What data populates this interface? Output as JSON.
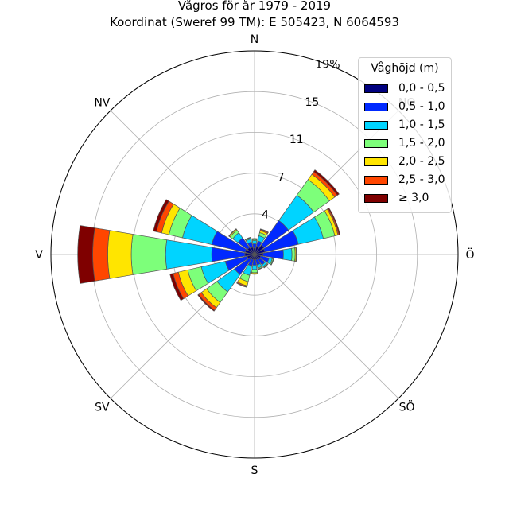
{
  "chart_data": {
    "type": "windrose",
    "title": "Vågros för år 1979 - 2019",
    "subtitle": "Koordinat (Sweref 99 TM): E 505423, N 6064593",
    "directions": [
      "N",
      "NO",
      "Ö",
      "SÖ",
      "S",
      "SV",
      "V",
      "NV"
    ],
    "sector_count": 16,
    "sector_angles_deg": [
      0,
      22.5,
      45,
      67.5,
      90,
      112.5,
      135,
      157.5,
      180,
      202.5,
      225,
      247.5,
      270,
      292.5,
      315,
      337.5
    ],
    "radial_ticks": [
      "4",
      "7",
      "11",
      "15",
      "19%"
    ],
    "radial_tick_values": [
      3.8,
      7.6,
      11.4,
      15.2,
      19.0
    ],
    "rmax": 19,
    "legend": {
      "title": "Våghöjd (m)",
      "placement": "top-right",
      "items": [
        "0,0 - 0,5",
        "0,5 - 1,0",
        "1,0 - 1,5",
        "1,5 - 2,0",
        "2,0 - 2,5",
        "2,5 - 3,0",
        "≥ 3,0"
      ],
      "colors": [
        "#00007f",
        "#0029ff",
        "#00d4ff",
        "#7dff7a",
        "#ffe500",
        "#ff4600",
        "#7f0000"
      ]
    },
    "series": [
      {
        "name": "0,0 - 0,5",
        "values": [
          0.6,
          0.8,
          1.1,
          1.0,
          0.8,
          0.6,
          0.6,
          0.5,
          0.5,
          0.5,
          0.6,
          0.7,
          0.9,
          0.9,
          0.8,
          0.7
        ]
      },
      {
        "name": "0,5 - 1,0",
        "values": [
          0.4,
          0.5,
          2.8,
          3.2,
          1.9,
          0.8,
          0.6,
          0.5,
          0.5,
          0.6,
          1.7,
          2.1,
          3.1,
          3.2,
          1.1,
          0.5
        ]
      },
      {
        "name": "1,0 - 1,5",
        "values": [
          0.3,
          0.5,
          2.9,
          2.4,
          0.8,
          0.3,
          0.2,
          0.3,
          0.4,
          0.9,
          2.0,
          2.3,
          4.3,
          2.8,
          0.6,
          0.3
        ]
      },
      {
        "name": "1,5 - 2,0",
        "values": [
          0.1,
          0.3,
          1.8,
          1.1,
          0.3,
          0.1,
          0.1,
          0.1,
          0.3,
          0.6,
          1.2,
          1.3,
          3.2,
          1.3,
          0.3,
          0.1
        ]
      },
      {
        "name": "2,0 - 2,5",
        "values": [
          0.05,
          0.2,
          0.6,
          0.3,
          0.1,
          0.05,
          0.05,
          0.05,
          0.1,
          0.4,
          0.6,
          0.9,
          2.2,
          0.7,
          0.1,
          0.05
        ]
      },
      {
        "name": "2,5 - 3,0",
        "values": [
          0.05,
          0.1,
          0.3,
          0.1,
          0.05,
          0.0,
          0.0,
          0.0,
          0.05,
          0.1,
          0.3,
          0.5,
          1.4,
          0.5,
          0.05,
          0.0
        ]
      },
      {
        "name": "≥ 3,0",
        "values": [
          0.0,
          0.05,
          0.2,
          0.1,
          0.0,
          0.0,
          0.0,
          0.0,
          0.0,
          0.05,
          0.1,
          0.3,
          1.4,
          0.3,
          0.0,
          0.0
        ]
      }
    ]
  }
}
